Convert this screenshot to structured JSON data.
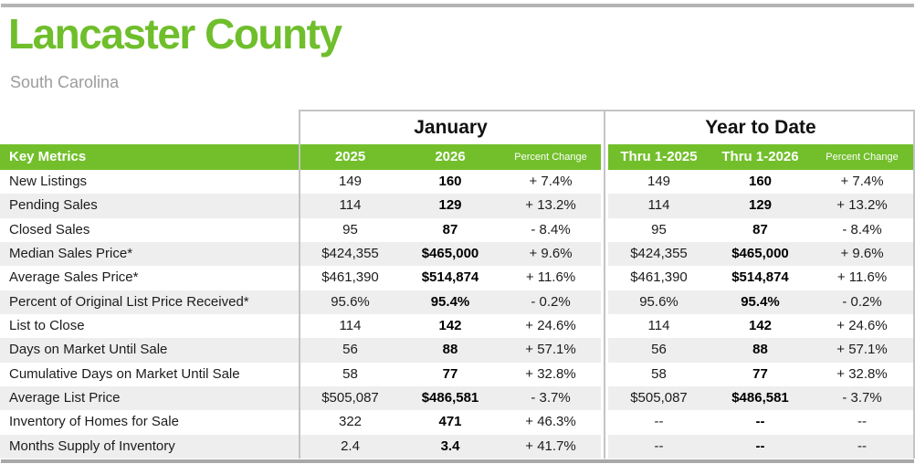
{
  "header": {
    "title": "Lancaster County",
    "subtitle": "South Carolina"
  },
  "colors": {
    "accent_green": "#72bf2b",
    "title_green": "#6fbe2b",
    "alt_row_gray": "#eeeeee",
    "divider_line_gray": "#c4c4c4",
    "top_rule_gray": "#b4b4b4",
    "bottom_rule_gray": "#a8a8a8"
  },
  "table": {
    "groups": [
      {
        "label": "January"
      },
      {
        "label": "Year to Date"
      }
    ],
    "metrics_header": "Key Metrics",
    "jan_columns": [
      "2025",
      "2026",
      "Percent Change"
    ],
    "ytd_columns": [
      "Thru 1-2025",
      "Thru 1-2026",
      "Percent Change"
    ],
    "rows": [
      {
        "metric": "New Listings",
        "jan": [
          "149",
          "160",
          "+ 7.4%"
        ],
        "ytd": [
          "149",
          "160",
          "+ 7.4%"
        ]
      },
      {
        "metric": "Pending Sales",
        "jan": [
          "114",
          "129",
          "+ 13.2%"
        ],
        "ytd": [
          "114",
          "129",
          "+ 13.2%"
        ]
      },
      {
        "metric": "Closed Sales",
        "jan": [
          "95",
          "87",
          "- 8.4%"
        ],
        "ytd": [
          "95",
          "87",
          "- 8.4%"
        ]
      },
      {
        "metric": "Median Sales Price*",
        "jan": [
          "$424,355",
          "$465,000",
          "+ 9.6%"
        ],
        "ytd": [
          "$424,355",
          "$465,000",
          "+ 9.6%"
        ]
      },
      {
        "metric": "Average Sales Price*",
        "jan": [
          "$461,390",
          "$514,874",
          "+ 11.6%"
        ],
        "ytd": [
          "$461,390",
          "$514,874",
          "+ 11.6%"
        ]
      },
      {
        "metric": "Percent of Original List Price Received*",
        "jan": [
          "95.6%",
          "95.4%",
          "- 0.2%"
        ],
        "ytd": [
          "95.6%",
          "95.4%",
          "- 0.2%"
        ]
      },
      {
        "metric": "List to Close",
        "jan": [
          "114",
          "142",
          "+ 24.6%"
        ],
        "ytd": [
          "114",
          "142",
          "+ 24.6%"
        ]
      },
      {
        "metric": "Days on Market Until Sale",
        "jan": [
          "56",
          "88",
          "+ 57.1%"
        ],
        "ytd": [
          "56",
          "88",
          "+ 57.1%"
        ]
      },
      {
        "metric": "Cumulative Days on Market Until Sale",
        "jan": [
          "58",
          "77",
          "+ 32.8%"
        ],
        "ytd": [
          "58",
          "77",
          "+ 32.8%"
        ]
      },
      {
        "metric": "Average List Price",
        "jan": [
          "$505,087",
          "$486,581",
          "- 3.7%"
        ],
        "ytd": [
          "$505,087",
          "$486,581",
          "- 3.7%"
        ]
      },
      {
        "metric": "Inventory of Homes for Sale",
        "jan": [
          "322",
          "471",
          "+ 46.3%"
        ],
        "ytd": [
          "--",
          "--",
          "--"
        ]
      },
      {
        "metric": "Months Supply of Inventory",
        "jan": [
          "2.4",
          "3.4",
          "+ 41.7%"
        ],
        "ytd": [
          "--",
          "--",
          "--"
        ]
      }
    ]
  }
}
